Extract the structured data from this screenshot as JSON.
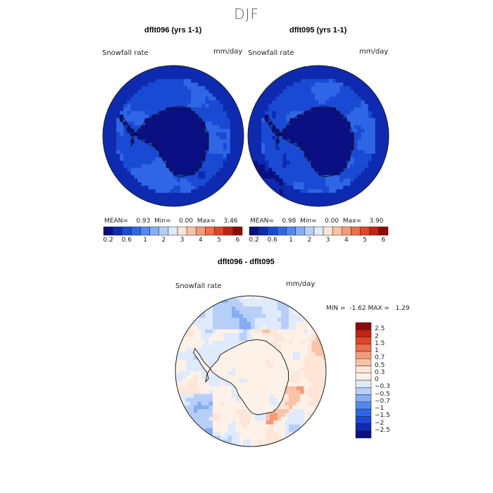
{
  "title": "DJF",
  "panels": [
    {
      "title": "dflt096 (yrs 1-1)",
      "var_label": "Snowfall rate",
      "units": "mm/day",
      "stats": {
        "mean_label": "MEAN=",
        "mean": "0.93",
        "min_label": "Min=",
        "min": "0.00",
        "max_label": "Max=",
        "max": "3.46"
      }
    },
    {
      "title": "dflt095 (yrs 1-1)",
      "var_label": "Snowfall rate",
      "units": "mm/day",
      "stats": {
        "mean_label": "MEAN=",
        "mean": "0.98",
        "min_label": "Min=",
        "min": "0.00",
        "max_label": "Max=",
        "max": "3.90"
      }
    },
    {
      "title": "dflt096 - dflt095",
      "var_label": "Snowfall rate",
      "units": "mm/day",
      "stats": {
        "min_label": "MIN =",
        "min": "-1.62",
        "max_label": "MAX =",
        "max": "1.29"
      }
    }
  ],
  "chart_data": [
    {
      "type": "heatmap",
      "projection": "south-polar-stereographic",
      "title": "dflt096 (yrs 1-1)",
      "colorbar": {
        "orientation": "horizontal",
        "ticks": [
          "0.2",
          "0.6",
          "1",
          "2",
          "3",
          "4",
          "5",
          "6"
        ],
        "colors": [
          "#0a0f82",
          "#0d2ab0",
          "#1a4ad4",
          "#2e66e6",
          "#5588ee",
          "#86adf3",
          "#b7cff8",
          "#dfeafc",
          "#fde6d8",
          "#f9c3a8",
          "#f59a78",
          "#ee6e4e",
          "#e1462a",
          "#c22312",
          "#8e0b05"
        ]
      },
      "stats": {
        "mean": 0.93,
        "min": 0.0,
        "max": 3.46
      }
    },
    {
      "type": "heatmap",
      "projection": "south-polar-stereographic",
      "title": "dflt095 (yrs 1-1)",
      "colorbar": {
        "orientation": "horizontal",
        "ticks": [
          "0.2",
          "0.6",
          "1",
          "2",
          "3",
          "4",
          "5",
          "6"
        ],
        "colors": [
          "#0a0f82",
          "#0d2ab0",
          "#1a4ad4",
          "#2e66e6",
          "#5588ee",
          "#86adf3",
          "#b7cff8",
          "#dfeafc",
          "#fde6d8",
          "#f9c3a8",
          "#f59a78",
          "#ee6e4e",
          "#e1462a",
          "#c22312",
          "#8e0b05"
        ]
      },
      "stats": {
        "mean": 0.98,
        "min": 0.0,
        "max": 3.9
      }
    },
    {
      "type": "heatmap",
      "projection": "south-polar-stereographic",
      "title": "dflt096 - dflt095",
      "colorbar": {
        "orientation": "vertical",
        "ticks": [
          "2.5",
          "2",
          "1.5",
          "1",
          "0.7",
          "0.5",
          "0.3",
          "0",
          "−0.3",
          "−0.5",
          "−0.7",
          "−1",
          "−1.5",
          "−2",
          "−2.5"
        ],
        "colors": [
          "#8e0b05",
          "#c22312",
          "#e1462a",
          "#ee6e4e",
          "#f59a78",
          "#f9c3a8",
          "#fde6d8",
          "#fdf1e8",
          "#dfeafc",
          "#b7cff8",
          "#86adf3",
          "#5588ee",
          "#2e66e6",
          "#1a4ad4",
          "#0d2ab0",
          "#0a0f82"
        ]
      },
      "stats": {
        "min": -1.62,
        "max": 1.29
      }
    }
  ]
}
